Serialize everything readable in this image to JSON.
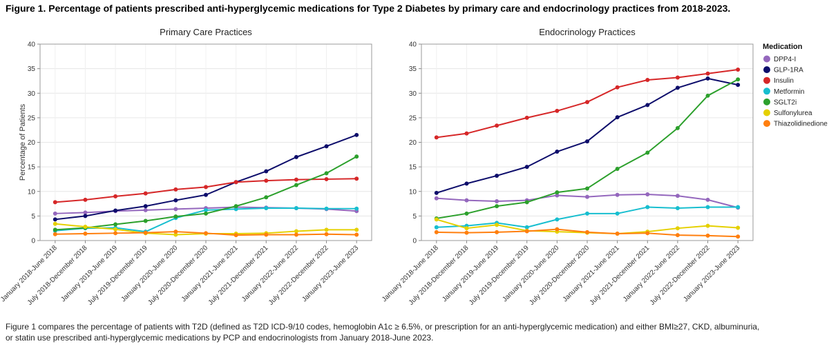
{
  "figure_title": "Figure 1. Percentage of patients prescribed anti-hyperglycemic medications for Type 2 Diabetes by primary care and endocrinology practices from 2018-2023.",
  "caption_lines": [
    "Figure 1 compares the percentage of patients with T2D (defined as T2D ICD-9/10 codes, hemoglobin A1c ≥ 6.5%, or prescription for an anti-hyperglycemic medication) and either BMI≥27, CKD, albuminuria,",
    "or statin use prescribed anti-hyperglycemic medications by PCP and endocrinologists from January 2018-June 2023."
  ],
  "legend": {
    "title": "Medication",
    "items": [
      {
        "name": "DPP4-I",
        "color": "#9467bd"
      },
      {
        "name": "GLP-1RA",
        "color": "#0d0d6b"
      },
      {
        "name": "Insulin",
        "color": "#d62728"
      },
      {
        "name": "Metformin",
        "color": "#17becf"
      },
      {
        "name": "SGLT2i",
        "color": "#2ca02c"
      },
      {
        "name": "Sulfonylurea",
        "color": "#e5d000"
      },
      {
        "name": "Thiazolidinedione",
        "color": "#ff7f0e"
      }
    ]
  },
  "chart_data": [
    {
      "type": "line",
      "title": "Primary Care Practices",
      "xlabel": "",
      "ylabel": "Percentage of Patients",
      "ylim": [
        0,
        40
      ],
      "yticks": [
        0,
        5,
        10,
        15,
        20,
        25,
        30,
        35,
        40
      ],
      "categories": [
        "January 2018-June 2018",
        "July 2018-December 2018",
        "January 2019-June 2019",
        "July 2019-December 2019",
        "January 2020-June 2020",
        "July 2020-December 2020",
        "January 2021-June 2021",
        "July 2021-December 2021",
        "January 2022-June 2022",
        "July 2022-December 2022",
        "January 2023-June 2023"
      ],
      "series": [
        {
          "name": "DPP4-I",
          "color": "#9467bd",
          "values": [
            5.5,
            5.7,
            6.0,
            6.2,
            6.4,
            6.6,
            6.8,
            6.7,
            6.6,
            6.4,
            6.0
          ]
        },
        {
          "name": "GLP-1RA",
          "color": "#0d0d6b",
          "values": [
            4.3,
            5.0,
            6.1,
            7.0,
            8.2,
            9.3,
            11.9,
            14.1,
            17.0,
            19.2,
            21.5
          ]
        },
        {
          "name": "Insulin",
          "color": "#d62728",
          "values": [
            7.8,
            8.3,
            9.0,
            9.6,
            10.4,
            10.9,
            11.9,
            12.2,
            12.4,
            12.5,
            12.6
          ]
        },
        {
          "name": "Metformin",
          "color": "#17becf",
          "values": [
            2.0,
            2.5,
            2.6,
            1.8,
            4.6,
            6.2,
            6.4,
            6.6,
            6.6,
            6.5,
            6.5
          ]
        },
        {
          "name": "SGLT2i",
          "color": "#2ca02c",
          "values": [
            2.2,
            2.6,
            3.3,
            4.0,
            4.9,
            5.5,
            7.0,
            8.8,
            11.3,
            13.7,
            17.1
          ]
        },
        {
          "name": "Sulfonylurea",
          "color": "#e5d000",
          "values": [
            3.4,
            2.8,
            2.3,
            1.5,
            1.2,
            1.4,
            1.4,
            1.5,
            1.9,
            2.2,
            2.2
          ]
        },
        {
          "name": "Thiazolidinedione",
          "color": "#ff7f0e",
          "values": [
            1.3,
            1.4,
            1.5,
            1.6,
            1.8,
            1.5,
            1.1,
            1.2,
            1.2,
            1.3,
            1.2
          ]
        }
      ]
    },
    {
      "type": "line",
      "title": "Endocrinology Practices",
      "xlabel": "",
      "ylabel": "",
      "ylim": [
        0,
        40
      ],
      "yticks": [
        0,
        5,
        10,
        15,
        20,
        25,
        30,
        35,
        40
      ],
      "categories": [
        "January 2018-June 2018",
        "July 2018-December 2018",
        "January 2019-June 2019",
        "July 2019-December 2019",
        "January 2020-June 2020",
        "July 2020-December 2020",
        "January 2021-June 2021",
        "July 2021-December 2021",
        "January 2022-June 2022",
        "July 2022-December 2022",
        "January 2023-June 2023"
      ],
      "series": [
        {
          "name": "DPP4-I",
          "color": "#9467bd",
          "values": [
            8.6,
            8.2,
            8.0,
            8.2,
            9.2,
            8.9,
            9.3,
            9.4,
            9.1,
            8.3,
            6.7
          ]
        },
        {
          "name": "GLP-1RA",
          "color": "#0d0d6b",
          "values": [
            9.7,
            11.6,
            13.2,
            15.0,
            18.1,
            20.2,
            25.1,
            27.6,
            31.1,
            33.0,
            31.7
          ]
        },
        {
          "name": "Insulin",
          "color": "#d62728",
          "values": [
            21.0,
            21.8,
            23.4,
            25.0,
            26.4,
            28.2,
            31.2,
            32.7,
            33.2,
            34.0,
            34.8
          ]
        },
        {
          "name": "Metformin",
          "color": "#17becf",
          "values": [
            2.7,
            3.0,
            3.6,
            2.7,
            4.3,
            5.5,
            5.5,
            6.8,
            6.6,
            6.8,
            6.8
          ]
        },
        {
          "name": "SGLT2i",
          "color": "#2ca02c",
          "values": [
            4.5,
            5.5,
            7.0,
            7.8,
            9.8,
            10.6,
            14.6,
            17.9,
            22.9,
            29.5,
            32.8
          ]
        },
        {
          "name": "Sulfonylurea",
          "color": "#e5d000",
          "values": [
            4.3,
            2.5,
            3.2,
            2.0,
            1.8,
            1.6,
            1.4,
            1.8,
            2.5,
            3.0,
            2.6
          ]
        },
        {
          "name": "Thiazolidinedione",
          "color": "#ff7f0e",
          "values": [
            1.7,
            1.6,
            1.7,
            1.9,
            2.3,
            1.7,
            1.4,
            1.5,
            1.1,
            1.0,
            0.8
          ]
        }
      ]
    }
  ]
}
